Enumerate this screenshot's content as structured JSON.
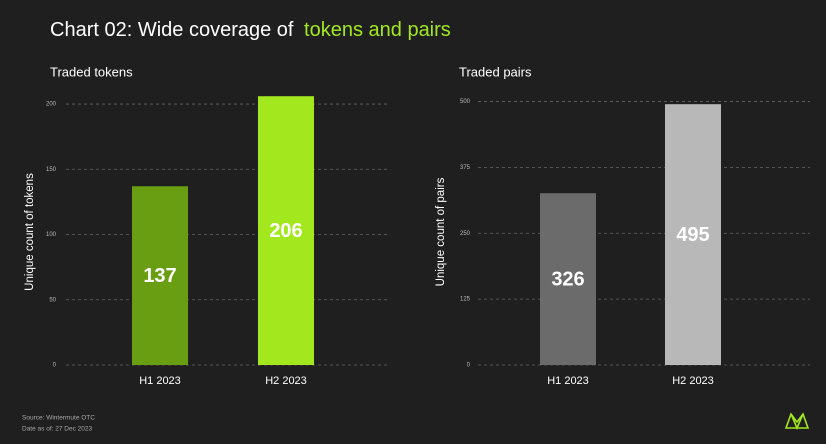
{
  "header": {
    "title": "Chart 02: Wide coverage of",
    "title_highlight": "tokens and pairs"
  },
  "footer": {
    "source": "Source: Wintermute OTC",
    "date": "Date as of: 27 Dec 2023"
  },
  "chart_data": [
    {
      "type": "bar",
      "title": "Traded tokens",
      "y_label": "Unique count of tokens",
      "categories": [
        "H1 2023",
        "H2 2023"
      ],
      "values": [
        137,
        206
      ],
      "colors": [
        "#6a9e12",
        "#a3e81f"
      ],
      "ylim": [
        0,
        210
      ],
      "yticks": [
        0,
        50,
        100,
        150,
        200
      ],
      "grid": true
    },
    {
      "type": "bar",
      "title": "Traded pairs",
      "y_label": "Unique count of pairs",
      "categories": [
        "H1 2023",
        "H2 2023"
      ],
      "values": [
        326,
        495
      ],
      "colors": [
        "#6b6b6b",
        "#b8b8b8"
      ],
      "ylim": [
        0,
        520
      ],
      "yticks": [
        0,
        125,
        250,
        375,
        500
      ],
      "grid": true
    }
  ]
}
